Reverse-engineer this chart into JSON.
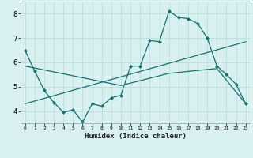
{
  "title": "",
  "xlabel": "Humidex (Indice chaleur)",
  "xlim": [
    -0.5,
    23.5
  ],
  "ylim": [
    3.5,
    8.5
  ],
  "yticks": [
    4,
    5,
    6,
    7,
    8
  ],
  "xticks": [
    0,
    1,
    2,
    3,
    4,
    5,
    6,
    7,
    8,
    9,
    10,
    11,
    12,
    13,
    14,
    15,
    16,
    17,
    18,
    19,
    20,
    21,
    22,
    23
  ],
  "bg_color": "#d8f0f0",
  "line_color": "#1a7070",
  "grid_color": "#b8dede",
  "series1_x": [
    0,
    1,
    2,
    3,
    4,
    5,
    6,
    7,
    8,
    9,
    10,
    11,
    12,
    13,
    14,
    15,
    16,
    17,
    18,
    19,
    20,
    21,
    22,
    23
  ],
  "series1_y": [
    6.5,
    5.65,
    4.85,
    4.35,
    3.95,
    4.05,
    3.55,
    4.3,
    4.2,
    4.55,
    4.65,
    5.85,
    5.85,
    6.9,
    6.85,
    8.1,
    7.85,
    7.8,
    7.6,
    7.0,
    5.85,
    5.5,
    5.1,
    4.3
  ],
  "series2_x": [
    0,
    23
  ],
  "series2_y": [
    4.3,
    6.85
  ],
  "series3_x": [
    0,
    10,
    15,
    20,
    23
  ],
  "series3_y": [
    5.85,
    5.05,
    5.55,
    5.75,
    4.3
  ]
}
